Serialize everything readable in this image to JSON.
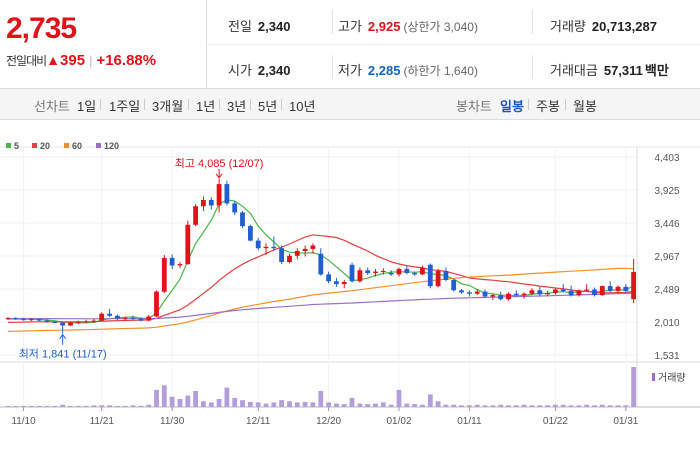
{
  "header": {
    "current_price": "2,735",
    "change_label": "전일대비",
    "change_amount": "395",
    "change_symbol": "▲",
    "change_percent": "+16.88%"
  },
  "stats": {
    "prev_close": {
      "label": "전일",
      "value": "2,340"
    },
    "open": {
      "label": "시가",
      "value": "2,340"
    },
    "high": {
      "label": "고가",
      "value": "2,925",
      "sub": "(상한가 3,040)"
    },
    "low": {
      "label": "저가",
      "value": "2,285",
      "sub": "(하한가 1,640)"
    },
    "volume": {
      "label": "거래량",
      "value": "20,713,287"
    },
    "amount": {
      "label": "거래대금",
      "value": "57,311",
      "unit": "백만"
    }
  },
  "line_chart_tabs": {
    "label": "선차트",
    "items": [
      "1일",
      "1주일",
      "3개월",
      "1년",
      "3년",
      "5년",
      "10년"
    ]
  },
  "candle_tabs": {
    "label": "봉차트",
    "items": [
      "일봉",
      "주봉",
      "월봉"
    ],
    "active": "일봉"
  },
  "colors": {
    "up": "#e0121a",
    "down": "#1f5fcf",
    "ma5": "#49b649",
    "ma20": "#e04040",
    "ma60": "#f0922b",
    "ma120": "#9a6fc8"
  },
  "chart_data": {
    "type": "candlestick",
    "legend": [
      {
        "name": "5",
        "color": "#49b649"
      },
      {
        "name": "20",
        "color": "#e04040"
      },
      {
        "name": "60",
        "color": "#f0922b"
      },
      {
        "name": "120",
        "color": "#9a6fc8"
      }
    ],
    "y_ticks": [
      "4,403",
      "3,925",
      "3,446",
      "2,967",
      "2,489",
      "2,010",
      "1,531"
    ],
    "ylim": [
      1531,
      4403
    ],
    "x_ticks": [
      "11/10",
      "11/21",
      "11/30",
      "12/11",
      "12/20",
      "01/02",
      "01/11",
      "01/22",
      "01/31"
    ],
    "annotations": {
      "high": "최고 4,085 (12/07)",
      "low": "최저 1,841 (11/17)"
    },
    "volume_label": "거래량",
    "candles": [
      [
        2060,
        2080,
        2040,
        2065
      ],
      [
        2065,
        2080,
        2040,
        2050
      ],
      [
        2050,
        2070,
        2030,
        2045
      ],
      [
        2045,
        2065,
        2025,
        2050
      ],
      [
        2050,
        2060,
        2020,
        2030
      ],
      [
        2030,
        2050,
        2000,
        2010
      ],
      [
        2010,
        2030,
        1990,
        2000
      ],
      [
        2000,
        2020,
        1841,
        1960
      ],
      [
        1960,
        2010,
        1950,
        2000
      ],
      [
        2000,
        2030,
        1980,
        2010
      ],
      [
        2010,
        2040,
        1990,
        2020
      ],
      [
        2020,
        2060,
        2000,
        2030
      ],
      [
        2030,
        2150,
        2020,
        2130
      ],
      [
        2130,
        2200,
        2080,
        2100
      ],
      [
        2100,
        2120,
        2040,
        2060
      ],
      [
        2060,
        2090,
        2030,
        2070
      ],
      [
        2070,
        2100,
        2040,
        2060
      ],
      [
        2060,
        2080,
        2020,
        2030
      ],
      [
        2030,
        2110,
        2020,
        2090
      ],
      [
        2090,
        2470,
        2080,
        2450
      ],
      [
        2450,
        2980,
        2430,
        2940
      ],
      [
        2940,
        2990,
        2780,
        2830
      ],
      [
        2830,
        2880,
        2790,
        2850
      ],
      [
        2850,
        3480,
        2840,
        3420
      ],
      [
        3420,
        3720,
        3400,
        3690
      ],
      [
        3690,
        3830,
        3620,
        3780
      ],
      [
        3780,
        3820,
        3640,
        3700
      ],
      [
        3700,
        4085,
        3600,
        4010
      ],
      [
        4010,
        4060,
        3700,
        3730
      ],
      [
        3730,
        3760,
        3560,
        3600
      ],
      [
        3600,
        3620,
        3370,
        3400
      ],
      [
        3400,
        3420,
        3180,
        3190
      ],
      [
        3190,
        3230,
        3050,
        3080
      ],
      [
        3080,
        3150,
        2980,
        3100
      ],
      [
        3100,
        3250,
        3040,
        3080
      ],
      [
        3080,
        3120,
        2850,
        2880
      ],
      [
        2880,
        3000,
        2860,
        2970
      ],
      [
        2970,
        3080,
        2920,
        3040
      ],
      [
        3040,
        3120,
        2960,
        3070
      ],
      [
        3070,
        3150,
        3000,
        3120
      ],
      [
        3000,
        3080,
        2680,
        2700
      ],
      [
        2700,
        2740,
        2570,
        2600
      ],
      [
        2600,
        2650,
        2520,
        2560
      ],
      [
        2560,
        2620,
        2500,
        2590
      ],
      [
        2840,
        2870,
        2580,
        2600
      ],
      [
        2600,
        2800,
        2580,
        2760
      ],
      [
        2760,
        2800,
        2690,
        2720
      ],
      [
        2720,
        2780,
        2670,
        2740
      ],
      [
        2740,
        2790,
        2700,
        2750
      ],
      [
        2720,
        2760,
        2680,
        2700
      ],
      [
        2700,
        2800,
        2670,
        2780
      ],
      [
        2780,
        2820,
        2700,
        2720
      ],
      [
        2720,
        2740,
        2680,
        2700
      ],
      [
        2700,
        2830,
        2690,
        2800
      ],
      [
        2840,
        2860,
        2500,
        2530
      ],
      [
        2530,
        2780,
        2510,
        2750
      ],
      [
        2750,
        2800,
        2600,
        2620
      ],
      [
        2620,
        2640,
        2450,
        2470
      ],
      [
        2470,
        2490,
        2420,
        2440
      ],
      [
        2440,
        2470,
        2380,
        2420
      ],
      [
        2420,
        2490,
        2400,
        2450
      ],
      [
        2450,
        2480,
        2360,
        2380
      ],
      [
        2380,
        2420,
        2330,
        2400
      ],
      [
        2400,
        2450,
        2320,
        2340
      ],
      [
        2340,
        2440,
        2320,
        2420
      ],
      [
        2420,
        2470,
        2380,
        2400
      ],
      [
        2400,
        2440,
        2350,
        2420
      ],
      [
        2420,
        2500,
        2400,
        2470
      ],
      [
        2470,
        2520,
        2380,
        2410
      ],
      [
        2410,
        2460,
        2380,
        2430
      ],
      [
        2430,
        2500,
        2410,
        2480
      ],
      [
        2480,
        2560,
        2440,
        2460
      ],
      [
        2460,
        2540,
        2380,
        2400
      ],
      [
        2400,
        2480,
        2380,
        2470
      ],
      [
        2470,
        2560,
        2450,
        2480
      ],
      [
        2480,
        2510,
        2380,
        2400
      ],
      [
        2400,
        2540,
        2390,
        2530
      ],
      [
        2530,
        2600,
        2440,
        2460
      ],
      [
        2460,
        2540,
        2420,
        2520
      ],
      [
        2520,
        2560,
        2440,
        2460
      ],
      [
        2340,
        2925,
        2285,
        2735
      ]
    ],
    "volumes": [
      2,
      2,
      2,
      2,
      2,
      2,
      2,
      4,
      2,
      2,
      2,
      3,
      3,
      3,
      2,
      2,
      3,
      2,
      4,
      30,
      38,
      18,
      14,
      20,
      28,
      10,
      8,
      14,
      34,
      16,
      12,
      9,
      8,
      6,
      8,
      12,
      10,
      8,
      9,
      8,
      28,
      8,
      6,
      5,
      16,
      6,
      5,
      6,
      8,
      4,
      30,
      6,
      5,
      4,
      22,
      10,
      4,
      4,
      3,
      3,
      4,
      3,
      3,
      4,
      3,
      3,
      4,
      3,
      3,
      3,
      4,
      4,
      3,
      3,
      4,
      3,
      4,
      3,
      3,
      3,
      70
    ],
    "x_tick_positions": [
      2,
      12,
      21,
      32,
      41,
      50,
      59,
      70,
      79
    ]
  }
}
